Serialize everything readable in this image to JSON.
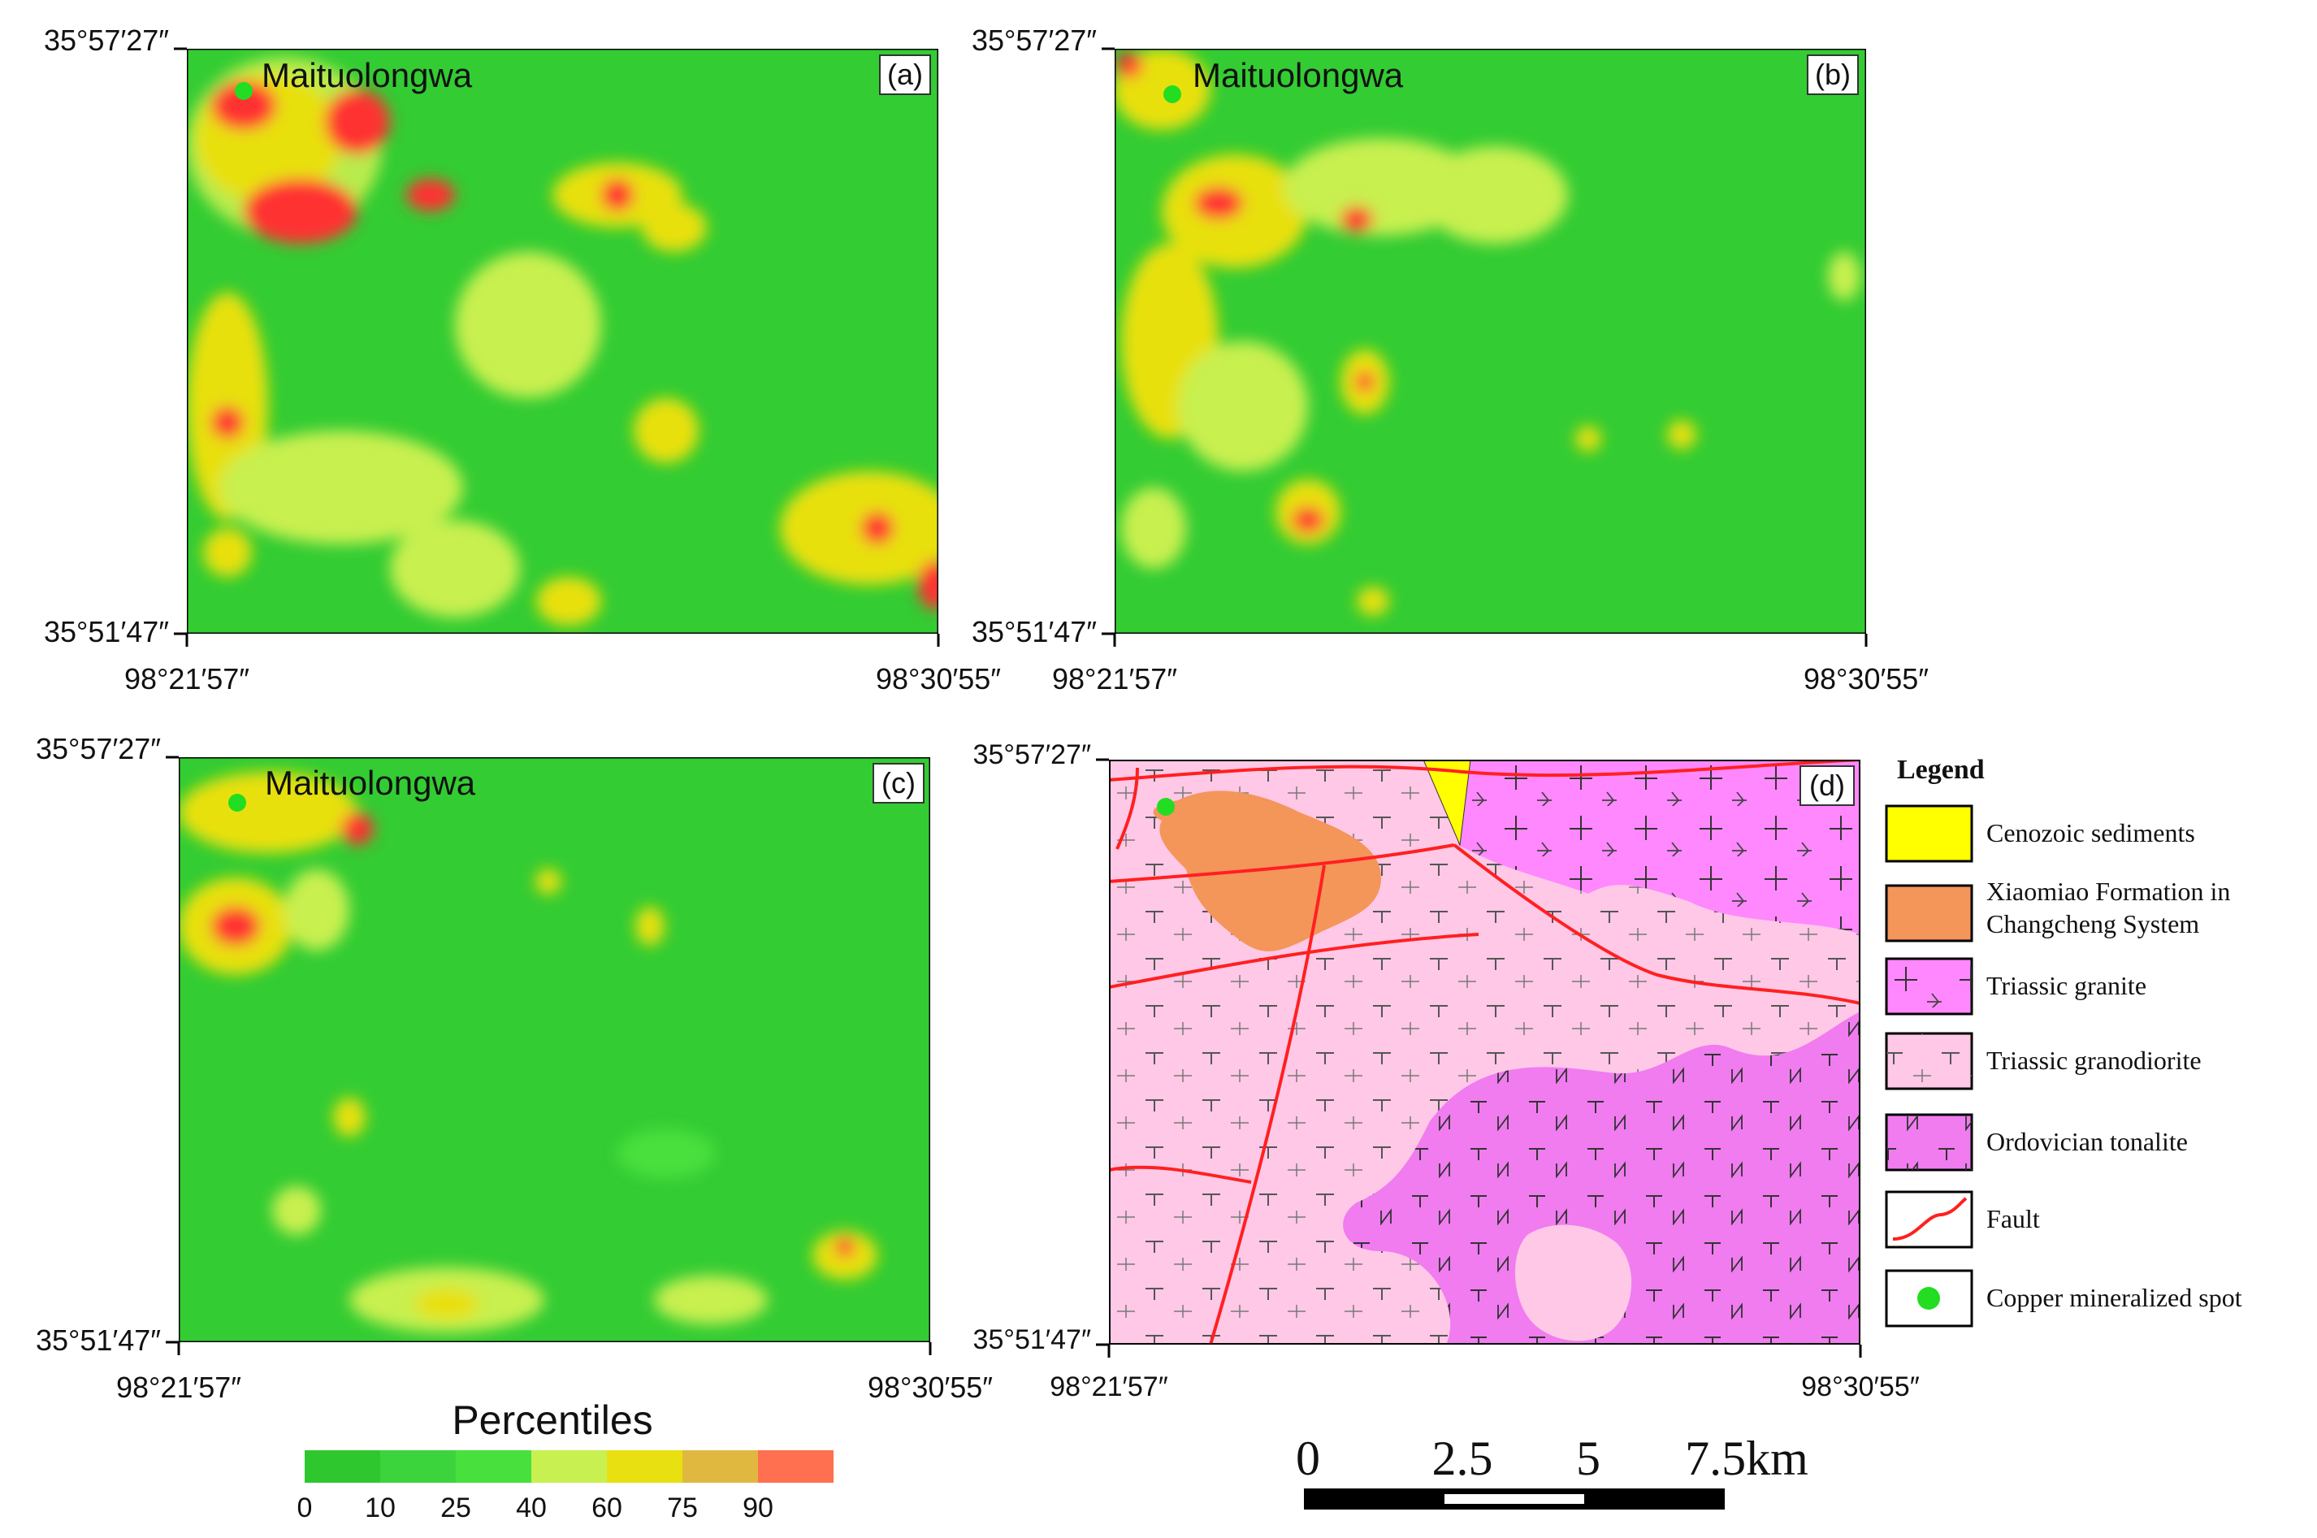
{
  "panels": [
    {
      "label": "(a)",
      "locality": "Maituolongwa",
      "lat_top": "35°57′27″",
      "lat_bottom": "35°51′47″",
      "lon_left": "98°21′57″",
      "lon_right": "98°30′55″"
    },
    {
      "label": "(b)",
      "locality": "Maituolongwa",
      "lat_top": "35°57′27″",
      "lat_bottom": "35°51′47″",
      "lon_left": "98°21′57″",
      "lon_right": "98°30′55″"
    },
    {
      "label": "(c)",
      "locality": "Maituolongwa",
      "lat_top": "35°57′27″",
      "lat_bottom": "35°51′47″",
      "lon_left": "98°21′57″",
      "lon_right": "98°30′55″"
    },
    {
      "label": "(d)",
      "lat_top": "35°57′27″",
      "lat_bottom": "35°51′47″",
      "lon_left": "98°21′57″",
      "lon_right": "98°30′55″"
    }
  ],
  "percentile_legend": {
    "title": "Percentiles",
    "ticks": [
      "0",
      "10",
      "25",
      "40",
      "60",
      "75",
      "90"
    ],
    "colors": [
      "#2ec82e",
      "#3cd43c",
      "#48e03c",
      "#c8f050",
      "#e8e010",
      "#e0b840",
      "#ff7050"
    ]
  },
  "geology_legend": {
    "title": "Legend",
    "items": [
      {
        "label": "Cenozoic sediments",
        "color": "#ffff00"
      },
      {
        "label": "Xiaomiao Formation in",
        "label2": "Changcheng System",
        "color": "#f4955a"
      },
      {
        "label": "Triassic granite",
        "color": "#ff88ff"
      },
      {
        "label": "Triassic granodiorite",
        "color": "#ffc8e6"
      },
      {
        "label": "Ordovician tonalite",
        "color": "#f07cf0"
      },
      {
        "label": "Fault",
        "color": "#ff2020"
      },
      {
        "label": "Copper mineralized spot",
        "color": "#22dd22"
      }
    ]
  },
  "scale_bar": {
    "labels": [
      "0",
      "2.5",
      "5",
      "7.5km"
    ]
  }
}
